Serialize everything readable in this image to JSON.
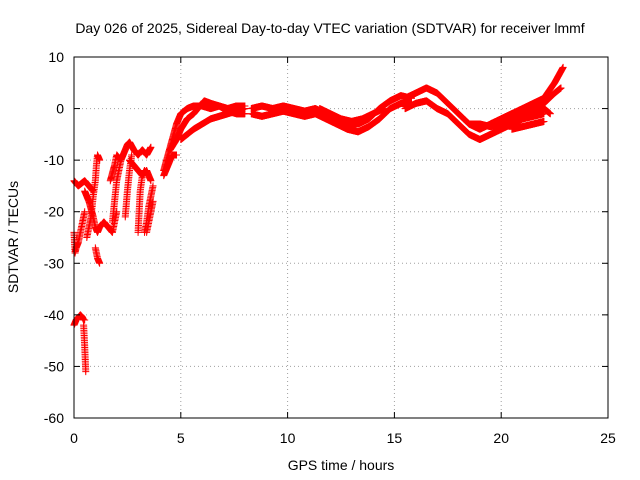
{
  "chart_data": {
    "type": "scatter",
    "title": "Day 026 of 2025, Sidereal Day-to-day VTEC variation (SDTVAR) for receiver lmmf",
    "xlabel": "GPS time / hours",
    "ylabel": "SDTVAR / TECUs",
    "xlim": [
      0,
      25
    ],
    "ylim": [
      -60,
      10
    ],
    "xticks": [
      0,
      5,
      10,
      15,
      20,
      25
    ],
    "yticks": [
      -60,
      -50,
      -40,
      -30,
      -20,
      -10,
      0,
      10
    ],
    "xtick_labels": [
      "0",
      "5",
      "10",
      "15",
      "20",
      "25"
    ],
    "ytick_labels": [
      "-60",
      "-50",
      "-40",
      "-30",
      "-20",
      "-10",
      "0",
      "10"
    ],
    "grid": true,
    "marker": "+",
    "series_color": "#ff0000",
    "series": [
      {
        "name": "s1",
        "x": [
          0.0,
          0.1,
          0.2,
          0.35,
          0.5,
          0.7,
          0.9
        ],
        "y": [
          -14,
          -14.5,
          -15,
          -14.5,
          -14,
          -15,
          -16
        ]
      },
      {
        "name": "s2",
        "x": [
          0.0,
          0.05,
          0.1,
          0.2,
          0.3,
          0.4,
          0.5
        ],
        "y": [
          -24,
          -28,
          -27,
          -26,
          -24,
          -22,
          -20
        ]
      },
      {
        "name": "s3",
        "x": [
          0.5,
          0.7,
          0.9,
          1.0,
          1.1,
          1.2,
          1.4,
          1.6,
          1.8,
          2.0
        ],
        "y": [
          -16,
          -18,
          -21,
          -23,
          -24,
          -23,
          -22,
          -23,
          -24,
          -20
        ]
      },
      {
        "name": "s4",
        "x": [
          0.6,
          0.8,
          0.9,
          1.0,
          1.05,
          1.1,
          1.2
        ],
        "y": [
          -25,
          -21,
          -17,
          -14,
          -11,
          -9,
          -10
        ]
      },
      {
        "name": "s5",
        "x": [
          1.0,
          1.1,
          1.2
        ],
        "y": [
          -27,
          -29,
          -30
        ]
      },
      {
        "name": "s6",
        "x": [
          0.0,
          0.1,
          0.2,
          0.3,
          0.4,
          0.45,
          0.5
        ],
        "y": [
          -42,
          -41,
          -40.5,
          -40,
          -40.5,
          -41,
          -41
        ]
      },
      {
        "name": "s7",
        "x": [
          0.45,
          0.5,
          0.55
        ],
        "y": [
          -42,
          -46,
          -51
        ]
      },
      {
        "name": "s8",
        "x": [
          1.7,
          1.9,
          2.0,
          2.2,
          2.4,
          2.5,
          2.6,
          2.8,
          3.0,
          3.2,
          3.4,
          3.6
        ],
        "y": [
          -14,
          -11,
          -9,
          -10,
          -8,
          -7,
          -6.5,
          -8,
          -9,
          -8,
          -9,
          -7.5
        ]
      },
      {
        "name": "s9",
        "x": [
          1.8,
          1.9,
          2.0,
          2.1,
          2.2
        ],
        "y": [
          -22,
          -18,
          -14,
          -12,
          -10
        ]
      },
      {
        "name": "s10",
        "x": [
          2.4,
          2.5,
          2.6,
          2.7
        ],
        "y": [
          -21,
          -16,
          -12,
          -9
        ]
      },
      {
        "name": "s11",
        "x": [
          3.0,
          3.05,
          3.1,
          3.2,
          3.3
        ],
        "y": [
          -24,
          -20,
          -16,
          -13,
          -12
        ]
      },
      {
        "name": "s12",
        "x": [
          3.3,
          3.4,
          3.5,
          3.6,
          3.7
        ],
        "y": [
          -24,
          -22,
          -19,
          -17,
          -15
        ]
      },
      {
        "name": "s13",
        "x": [
          3.4,
          3.5,
          3.6,
          3.7
        ],
        "y": [
          -24,
          -22,
          -20,
          -18
        ]
      },
      {
        "name": "s14",
        "x": [
          2.6,
          2.8,
          3.0,
          3.2,
          3.4,
          3.6
        ],
        "y": [
          -10,
          -11,
          -12,
          -13,
          -12,
          -14
        ]
      },
      {
        "name": "s15",
        "x": [
          4.2,
          4.4,
          4.5,
          4.6,
          4.8
        ],
        "y": [
          -13,
          -11,
          -10,
          -9,
          -9
        ]
      },
      {
        "name": "s16",
        "x": [
          4.2,
          4.4,
          4.6,
          4.8,
          5.0,
          5.3,
          5.6,
          6.0,
          6.4,
          6.8,
          7.2,
          7.6,
          8.0
        ],
        "y": [
          -12,
          -9,
          -6,
          -3,
          -1,
          0,
          0.5,
          0.5,
          0,
          0.5,
          0,
          0.5,
          0.5
        ]
      },
      {
        "name": "s17",
        "x": [
          4.5,
          4.8,
          5.0,
          5.3,
          5.6,
          5.9,
          6.1,
          6.4,
          6.8,
          7.2,
          7.6,
          8.0
        ],
        "y": [
          -8,
          -6,
          -4,
          -2,
          -1,
          0.5,
          1.5,
          1.0,
          0.5,
          -0.5,
          -1,
          -1
        ]
      },
      {
        "name": "s18",
        "x": [
          5.0,
          5.3,
          5.6,
          6.0,
          6.4,
          6.8,
          7.2,
          7.6,
          8.0
        ],
        "y": [
          -6,
          -5,
          -4,
          -3,
          -2,
          -1.5,
          -1,
          -0.5,
          0
        ]
      },
      {
        "name": "s19",
        "x": [
          8.3,
          8.8,
          9.3,
          9.8,
          10.3,
          10.8,
          11.3,
          11.8,
          12.3,
          12.8,
          13.3,
          13.8,
          14.3,
          14.8,
          15.3,
          15.8
        ],
        "y": [
          0,
          0.5,
          0,
          0.5,
          0,
          -0.5,
          0,
          -1,
          -2,
          -3,
          -3,
          -2,
          0,
          1.5,
          2.5,
          2
        ]
      },
      {
        "name": "s20",
        "x": [
          8.3,
          8.8,
          9.3,
          9.8,
          10.3,
          10.8,
          11.3,
          11.8,
          12.3,
          12.8,
          13.3,
          13.8,
          14.3,
          14.8,
          15.3,
          15.8
        ],
        "y": [
          -1,
          -1.5,
          -1,
          -0.5,
          -1,
          -1.5,
          -1,
          -2,
          -3,
          -4,
          -4.5,
          -3.5,
          -2,
          0,
          1,
          1
        ]
      },
      {
        "name": "s21",
        "x": [
          11.5,
          12.0,
          12.5,
          13.0,
          13.5,
          14.0,
          14.5
        ],
        "y": [
          0,
          -1,
          -2,
          -2.5,
          -2,
          -1,
          0
        ]
      },
      {
        "name": "s22",
        "x": [
          15.5,
          16.0,
          16.5,
          17.0,
          17.5,
          18.0,
          18.5,
          19.0,
          19.5,
          20.0,
          20.5,
          21.0,
          21.5,
          22.0,
          22.5,
          22.8
        ],
        "y": [
          2,
          3,
          4,
          3,
          1,
          -1,
          -3,
          -4,
          -3,
          -2,
          -1,
          -0.5,
          0,
          1,
          3,
          4
        ]
      },
      {
        "name": "s23",
        "x": [
          15.5,
          16.0,
          16.5,
          17.0,
          17.5,
          18.0,
          18.5,
          19.0,
          19.5,
          20.0,
          20.5,
          21.0,
          21.5,
          22.0
        ],
        "y": [
          0,
          1,
          1.5,
          0,
          -1,
          -3,
          -5,
          -6,
          -5,
          -4,
          -3,
          -2,
          -1.5,
          -1
        ]
      },
      {
        "name": "s24",
        "x": [
          18.5,
          19.0,
          19.5,
          20.0,
          20.5,
          21.0,
          21.5,
          22.0,
          22.3
        ],
        "y": [
          -3,
          -3,
          -3.5,
          -3,
          -2,
          -1,
          -0.5,
          0,
          -1
        ]
      },
      {
        "name": "s25",
        "x": [
          19.5,
          20.0,
          20.5,
          21.0,
          21.5,
          22.0,
          22.5,
          22.9
        ],
        "y": [
          -3,
          -2,
          -1,
          0,
          1,
          2,
          5,
          8
        ]
      },
      {
        "name": "s26",
        "x": [
          20.5,
          21.0,
          21.5,
          22.0
        ],
        "y": [
          -4,
          -3.5,
          -3,
          -2.5
        ]
      }
    ]
  }
}
